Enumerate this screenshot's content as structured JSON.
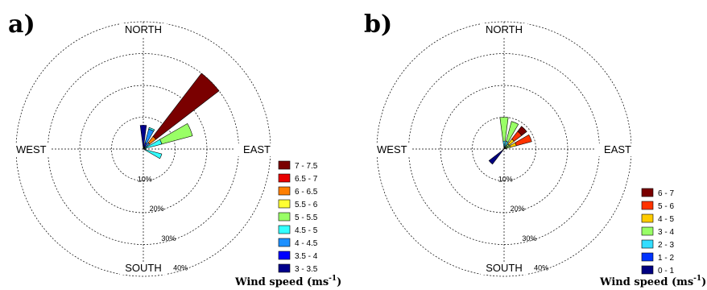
{
  "chart_data": [
    {
      "type": "windrose",
      "panel_label": "a)",
      "directions": {
        "north": "NORTH",
        "south": "SOUTH",
        "east": "EAST",
        "west": "WEST"
      },
      "rings": [
        "10%",
        "20%",
        "30%",
        "40%"
      ],
      "ring_max": 40,
      "legend_title": "Wind speed (ms",
      "legend_title_sup": "-1",
      "legend_title_end": ")",
      "legend": [
        {
          "label": "7 - 7.5",
          "color": "#7a0000"
        },
        {
          "label": "6.5 - 7",
          "color": "#e80000"
        },
        {
          "label": "6 - 6.5",
          "color": "#ff7f00"
        },
        {
          "label": "5.5 - 6",
          "color": "#ffff33"
        },
        {
          "label": "5 - 5.5",
          "color": "#99ff66"
        },
        {
          "label": "4.5 - 5",
          "color": "#33ffff"
        },
        {
          "label": "4 - 4.5",
          "color": "#1e90ff"
        },
        {
          "label": "3.5 - 4",
          "color": "#0000ff"
        },
        {
          "label": "3 - 3.5",
          "color": "#00008b"
        }
      ],
      "petals": [
        {
          "direction_deg": 0,
          "segments": [
            {
              "bin": "3 - 3.5",
              "percent": 7.5
            }
          ]
        },
        {
          "direction_deg": 22.5,
          "segments": [
            {
              "bin": "3.5 - 4",
              "percent": 2
            },
            {
              "bin": "4 - 4.5",
              "percent": 4.5
            },
            {
              "bin": "4.5 - 5",
              "percent": 0.5
            }
          ]
        },
        {
          "direction_deg": 45,
          "segments": [
            {
              "bin": "4 - 4.5",
              "percent": 2.5
            },
            {
              "bin": "6 - 6.5",
              "percent": 2.5
            },
            {
              "bin": "7 - 7.5",
              "percent": 25
            }
          ]
        },
        {
          "direction_deg": 67.5,
          "segments": [
            {
              "bin": "4.5 - 5",
              "percent": 6
            },
            {
              "bin": "5 - 5.5",
              "percent": 10
            }
          ]
        },
        {
          "direction_deg": 90,
          "segments": []
        },
        {
          "direction_deg": 112.5,
          "segments": [
            {
              "bin": "4.5 - 5",
              "percent": 6
            }
          ]
        }
      ]
    },
    {
      "type": "windrose",
      "panel_label": "b)",
      "directions": {
        "north": "NORTH",
        "south": "SOUTH",
        "east": "EAST",
        "west": "WEST"
      },
      "rings": [
        "10%",
        "20%",
        "30%",
        "40%"
      ],
      "ring_max": 40,
      "legend_title": "Wind speed (ms",
      "legend_title_sup": "-1",
      "legend_title_end": ")",
      "legend": [
        {
          "label": "6 - 7",
          "color": "#7a0000"
        },
        {
          "label": "5 - 6",
          "color": "#ff3300"
        },
        {
          "label": "4 - 5",
          "color": "#ffcc00"
        },
        {
          "label": "3 - 4",
          "color": "#99ff66"
        },
        {
          "label": "2 - 3",
          "color": "#33ddff"
        },
        {
          "label": "1 - 2",
          "color": "#0033ff"
        },
        {
          "label": "0 - 1",
          "color": "#000080"
        }
      ],
      "petals": [
        {
          "direction_deg": 0,
          "segments": [
            {
              "bin": "2 - 3",
              "percent": 2.5
            },
            {
              "bin": "3 - 4",
              "percent": 7.5
            }
          ]
        },
        {
          "direction_deg": 22.5,
          "segments": [
            {
              "bin": "2 - 3",
              "percent": 2.5
            },
            {
              "bin": "3 - 4",
              "percent": 6.5
            }
          ]
        },
        {
          "direction_deg": 45,
          "segments": [
            {
              "bin": "3 - 4",
              "percent": 2
            },
            {
              "bin": "4 - 5",
              "percent": 2
            },
            {
              "bin": "5 - 6",
              "percent": 3
            },
            {
              "bin": "6 - 7",
              "percent": 2
            }
          ]
        },
        {
          "direction_deg": 67.5,
          "segments": [
            {
              "bin": "3 - 4",
              "percent": 2
            },
            {
              "bin": "4 - 5",
              "percent": 2
            },
            {
              "bin": "5 - 6",
              "percent": 5
            }
          ]
        },
        {
          "direction_deg": 90,
          "segments": []
        },
        {
          "direction_deg": 225,
          "segments": [
            {
              "bin": "0 - 1",
              "percent": 6
            }
          ]
        }
      ]
    }
  ]
}
